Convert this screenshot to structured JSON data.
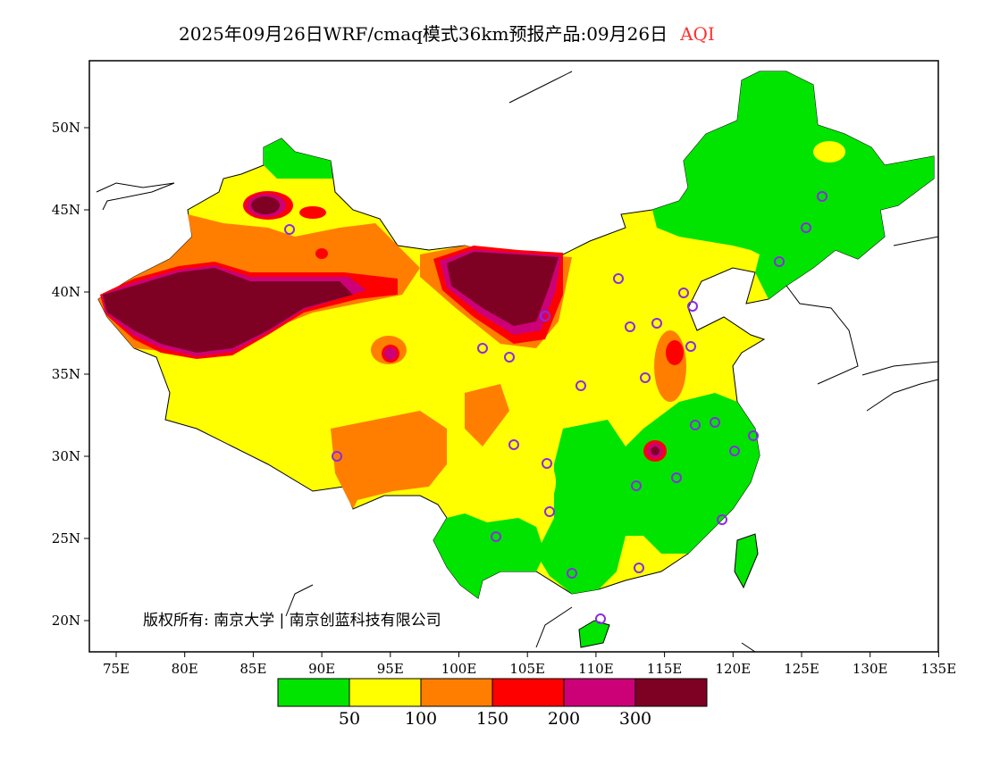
{
  "title": "2025年09月26日WRF/cmaq模式36km预报产品:09月26日",
  "variable": "AQI",
  "lon_labels": [
    "75E",
    "80E",
    "85E",
    "90E",
    "95E",
    "100E",
    "105E",
    "110E",
    "115E",
    "120E",
    "125E",
    "130E",
    "135E"
  ],
  "lat_labels": [
    "50N",
    "45N",
    "40N",
    "35N",
    "30N",
    "25N",
    "20N"
  ],
  "copyright": "版权所有: 南京大学 | 南京创蓝科技有限公司",
  "legend": {
    "colors": [
      "#00e400",
      "#ffff00",
      "#ff7e00",
      "#ff0000",
      "#cc0077",
      "#7e0023"
    ],
    "labels": [
      "50",
      "100",
      "150",
      "200",
      "300"
    ]
  }
}
